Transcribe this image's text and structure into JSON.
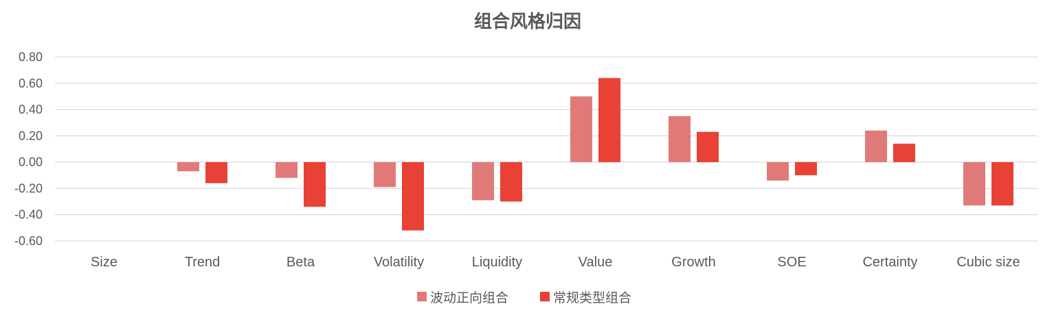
{
  "chart_data": {
    "type": "bar",
    "title": "组合风格归因",
    "categories": [
      "Size",
      "Trend",
      "Beta",
      "Volatility",
      "Liquidity",
      "Value",
      "Growth",
      "SOE",
      "Certainty",
      "Cubic size"
    ],
    "series": [
      {
        "name": "波动正向组合",
        "color": "#E07A79",
        "values": [
          0.0,
          -0.07,
          -0.12,
          -0.19,
          -0.29,
          0.5,
          0.35,
          -0.14,
          0.24,
          -0.33
        ]
      },
      {
        "name": "常规类型组合",
        "color": "#E84135",
        "values": [
          0.0,
          -0.16,
          -0.34,
          -0.52,
          -0.3,
          0.64,
          0.23,
          -0.1,
          0.14,
          -0.33
        ]
      }
    ],
    "yticks": [
      "0.80",
      "0.60",
      "0.40",
      "0.20",
      "0.00",
      "-0.20",
      "-0.40",
      "-0.60"
    ],
    "ylim": [
      -0.6,
      0.8
    ],
    "grid": true,
    "legend_position": "bottom"
  }
}
